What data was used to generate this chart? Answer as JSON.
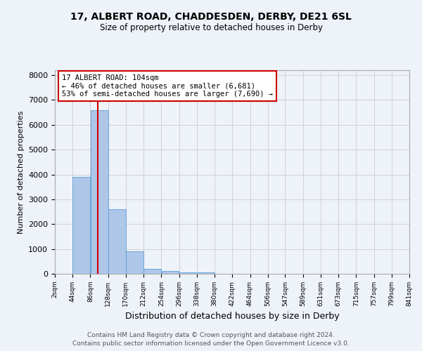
{
  "title1": "17, ALBERT ROAD, CHADDESDEN, DERBY, DE21 6SL",
  "title2": "Size of property relative to detached houses in Derby",
  "xlabel": "Distribution of detached houses by size in Derby",
  "ylabel": "Number of detached properties",
  "bin_labels": [
    "2sqm",
    "44sqm",
    "86sqm",
    "128sqm",
    "170sqm",
    "212sqm",
    "254sqm",
    "296sqm",
    "338sqm",
    "380sqm",
    "422sqm",
    "464sqm",
    "506sqm",
    "547sqm",
    "589sqm",
    "631sqm",
    "673sqm",
    "715sqm",
    "757sqm",
    "799sqm",
    "841sqm"
  ],
  "bin_edges": [
    2,
    44,
    86,
    128,
    170,
    212,
    254,
    296,
    338,
    380,
    422,
    464,
    506,
    547,
    589,
    631,
    673,
    715,
    757,
    799,
    841
  ],
  "bar_heights": [
    0,
    3900,
    6600,
    2600,
    900,
    200,
    100,
    50,
    50,
    0,
    0,
    0,
    0,
    0,
    0,
    0,
    0,
    0,
    0,
    0
  ],
  "bar_color": "#aec6e8",
  "bar_edge_color": "#5a9fd4",
  "property_size": 104,
  "vline_color": "#cc0000",
  "annotation_line1": "17 ALBERT ROAD: 104sqm",
  "annotation_line2": "← 46% of detached houses are smaller (6,681)",
  "annotation_line3": "53% of semi-detached houses are larger (7,690) →",
  "annotation_box_color": "#ffffff",
  "annotation_box_edge_color": "#cc0000",
  "ylim": [
    0,
    8200
  ],
  "yticks": [
    0,
    1000,
    2000,
    3000,
    4000,
    5000,
    6000,
    7000,
    8000
  ],
  "grid_color": "#cccccc",
  "bg_color": "#eef2f9",
  "footnote1": "Contains HM Land Registry data © Crown copyright and database right 2024.",
  "footnote2": "Contains public sector information licensed under the Open Government Licence v3.0."
}
